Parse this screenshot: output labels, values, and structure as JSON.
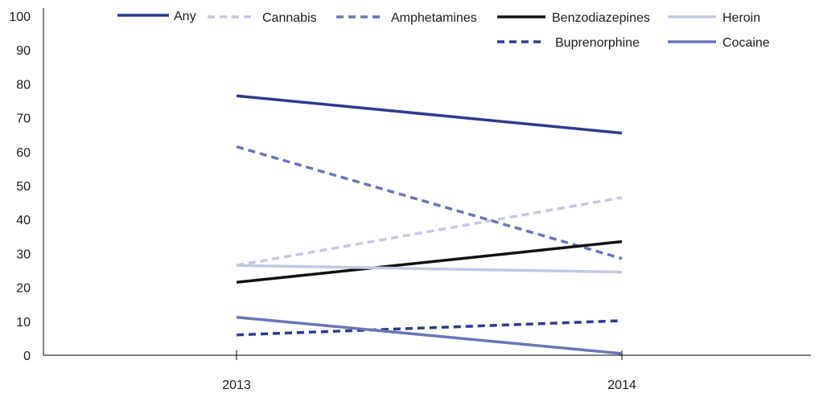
{
  "chart_data": {
    "type": "line",
    "x": [
      "2013",
      "2014"
    ],
    "ylim": [
      0,
      100
    ],
    "yticks": [
      0,
      10,
      20,
      30,
      40,
      50,
      60,
      70,
      80,
      90,
      100
    ],
    "grid": false,
    "legend_position": "top-right",
    "series": [
      {
        "name": "Any",
        "values": [
          76.5,
          65.5
        ],
        "color": "#2e3a8c",
        "dash": "solid"
      },
      {
        "name": "Cannabis",
        "values": [
          26.5,
          46.5
        ],
        "color": "#c3c8e2",
        "dash": "dashed"
      },
      {
        "name": "Amphetamines",
        "values": [
          61.5,
          28.5
        ],
        "color": "#6a75b5",
        "dash": "dashed"
      },
      {
        "name": "Benzodiazepines",
        "values": [
          21.5,
          33.5
        ],
        "color": "#111111",
        "dash": "solid"
      },
      {
        "name": "Heroin",
        "values": [
          26.5,
          24.5
        ],
        "color": "#c3c8e2",
        "dash": "solid"
      },
      {
        "name": "Buprenorphine",
        "values": [
          6,
          10.2
        ],
        "color": "#2e3a8c",
        "dash": "dashed"
      },
      {
        "name": "Cocaine",
        "values": [
          11.2,
          0.5
        ],
        "color": "#6a75b5",
        "dash": "solid"
      }
    ]
  }
}
